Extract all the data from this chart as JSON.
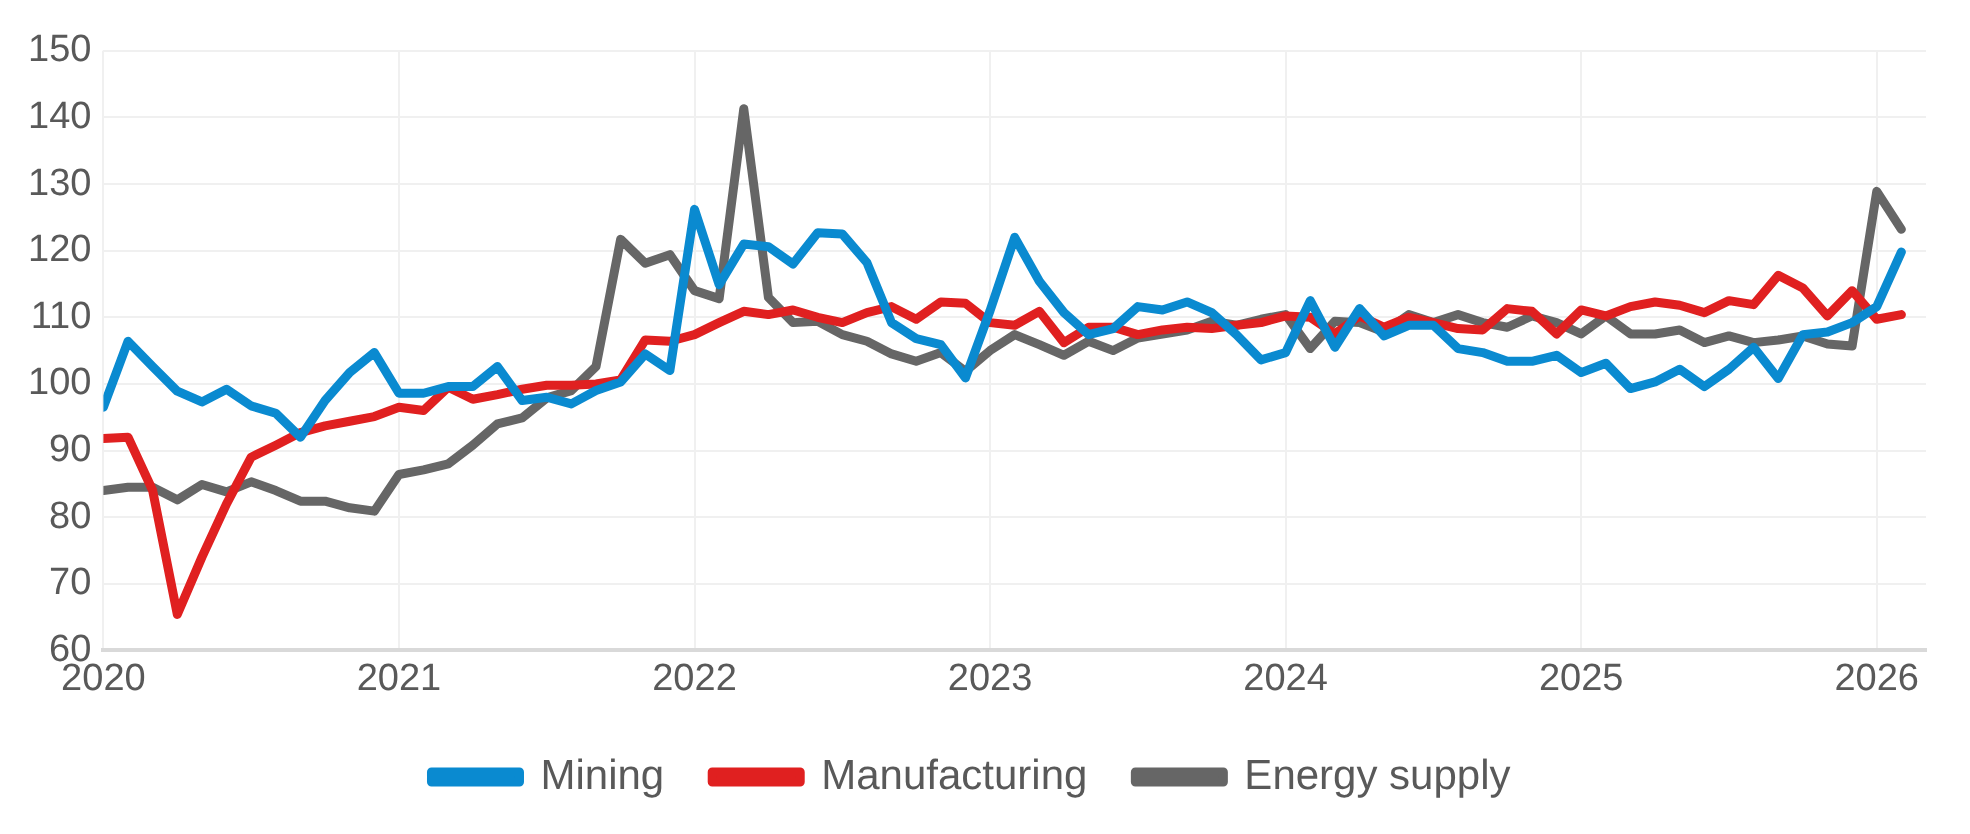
{
  "chart_data": {
    "type": "line",
    "x": [
      "2020-01",
      "2020-02",
      "2020-03",
      "2020-04",
      "2020-05",
      "2020-06",
      "2020-07",
      "2020-08",
      "2020-09",
      "2020-10",
      "2020-11",
      "2020-12",
      "2021-01",
      "2021-02",
      "2021-03",
      "2021-04",
      "2021-05",
      "2021-06",
      "2021-07",
      "2021-08",
      "2021-09",
      "2021-10",
      "2021-11",
      "2021-12",
      "2022-01",
      "2022-02",
      "2022-03",
      "2022-04",
      "2022-05",
      "2022-06",
      "2022-07",
      "2022-08",
      "2022-09",
      "2022-10",
      "2022-11",
      "2022-12",
      "2023-01",
      "2023-02",
      "2023-03",
      "2023-04",
      "2023-05",
      "2023-06",
      "2023-07",
      "2023-08",
      "2023-09",
      "2023-10",
      "2023-11",
      "2023-12",
      "2024-01",
      "2024-02",
      "2024-03",
      "2024-04",
      "2024-05",
      "2024-06",
      "2024-07",
      "2024-08",
      "2024-09",
      "2024-10",
      "2024-11",
      "2024-12",
      "2025-01",
      "2025-02",
      "2025-03",
      "2025-04",
      "2025-05",
      "2025-06",
      "2025-07",
      "2025-08",
      "2025-09",
      "2025-10",
      "2025-11",
      "2025-12",
      "2026-01",
      "2026-02"
    ],
    "series": [
      {
        "name": "Mining",
        "color": "#0a8ad0",
        "values": [
          96.5,
          106.4,
          102.6,
          98.9,
          97.3,
          99.2,
          96.7,
          95.6,
          92,
          97.5,
          101.7,
          104.7,
          98.6,
          98.6,
          99.6,
          99.6,
          102.6,
          97.5,
          98,
          97,
          99,
          100.3,
          104.5,
          102,
          126.2,
          114.9,
          121,
          120.6,
          118,
          122.7,
          122.5,
          118.2,
          109.2,
          106.8,
          105.9,
          100.9,
          111,
          122,
          115.4,
          110.7,
          107.4,
          108.3,
          111.6,
          111.1,
          112.3,
          110.7,
          107.4,
          103.6,
          104.7,
          112.5,
          105.5,
          111.3,
          107.2,
          108.8,
          108.8,
          105.3,
          104.7,
          103.4,
          103.4,
          104.3,
          101.7,
          103.1,
          99.3,
          100.3,
          102.2,
          99.6,
          102.2,
          105.5,
          100.8,
          107.4,
          107.8,
          109.2,
          111.6,
          119.8
        ]
      },
      {
        "name": "Manufacturing",
        "color": "#e02020",
        "values": [
          91.8,
          92,
          84,
          65.4,
          74,
          82,
          89,
          90.8,
          92.7,
          93.7,
          94.4,
          95.1,
          96.5,
          96,
          99.5,
          97.7,
          98.4,
          99.2,
          99.8,
          99.8,
          100,
          100.6,
          106.6,
          106.4,
          107.4,
          109.2,
          110.9,
          110.4,
          111.1,
          110,
          109.2,
          110.7,
          111.6,
          109.7,
          112.3,
          112.1,
          109.2,
          108.8,
          110.9,
          106.2,
          108.5,
          108.5,
          107.4,
          108.1,
          108.5,
          108.3,
          108.8,
          109.2,
          110.2,
          110,
          107.5,
          110.2,
          108.5,
          110,
          109.2,
          108.3,
          108.1,
          111.3,
          110.9,
          107.5,
          111.1,
          110.2,
          111.6,
          112.3,
          111.8,
          110.7,
          112.5,
          111.9,
          116.3,
          114.4,
          110.2,
          114,
          109.7,
          110.4
        ]
      },
      {
        "name": "Energy supply",
        "color": "#666666",
        "values": [
          84,
          84.5,
          84.5,
          82.6,
          84.9,
          83.8,
          85.3,
          84,
          82.4,
          82.4,
          81.4,
          80.9,
          86.4,
          87.1,
          88,
          90.8,
          94,
          94.9,
          97.9,
          99,
          102.6,
          121.7,
          118.1,
          119.4,
          114,
          112.8,
          141.3,
          113,
          109.2,
          109.4,
          107.4,
          106.4,
          104.5,
          103.4,
          104.7,
          101.9,
          105,
          107.4,
          105.9,
          104.3,
          106.4,
          105,
          106.9,
          107.5,
          108.1,
          109.4,
          108.8,
          109.7,
          110.4,
          105.3,
          109.4,
          109.2,
          107.8,
          110.4,
          109.2,
          110.4,
          109.2,
          108.5,
          110.2,
          109.2,
          107.5,
          110.2,
          107.5,
          107.5,
          108.1,
          106.2,
          107.2,
          106.2,
          106.6,
          107.2,
          106,
          105.7,
          128.9,
          123.2
        ]
      }
    ],
    "xlim": [
      "2020",
      "2026-03"
    ],
    "xticks": [
      "2020",
      "2021",
      "2022",
      "2023",
      "2024",
      "2025",
      "2026"
    ],
    "ylim": [
      60,
      150
    ],
    "yticks": [
      60,
      70,
      80,
      90,
      100,
      110,
      120,
      130,
      140,
      150
    ],
    "grid": true,
    "legend": "bottom",
    "marker": "none",
    "line_style": "solid"
  }
}
